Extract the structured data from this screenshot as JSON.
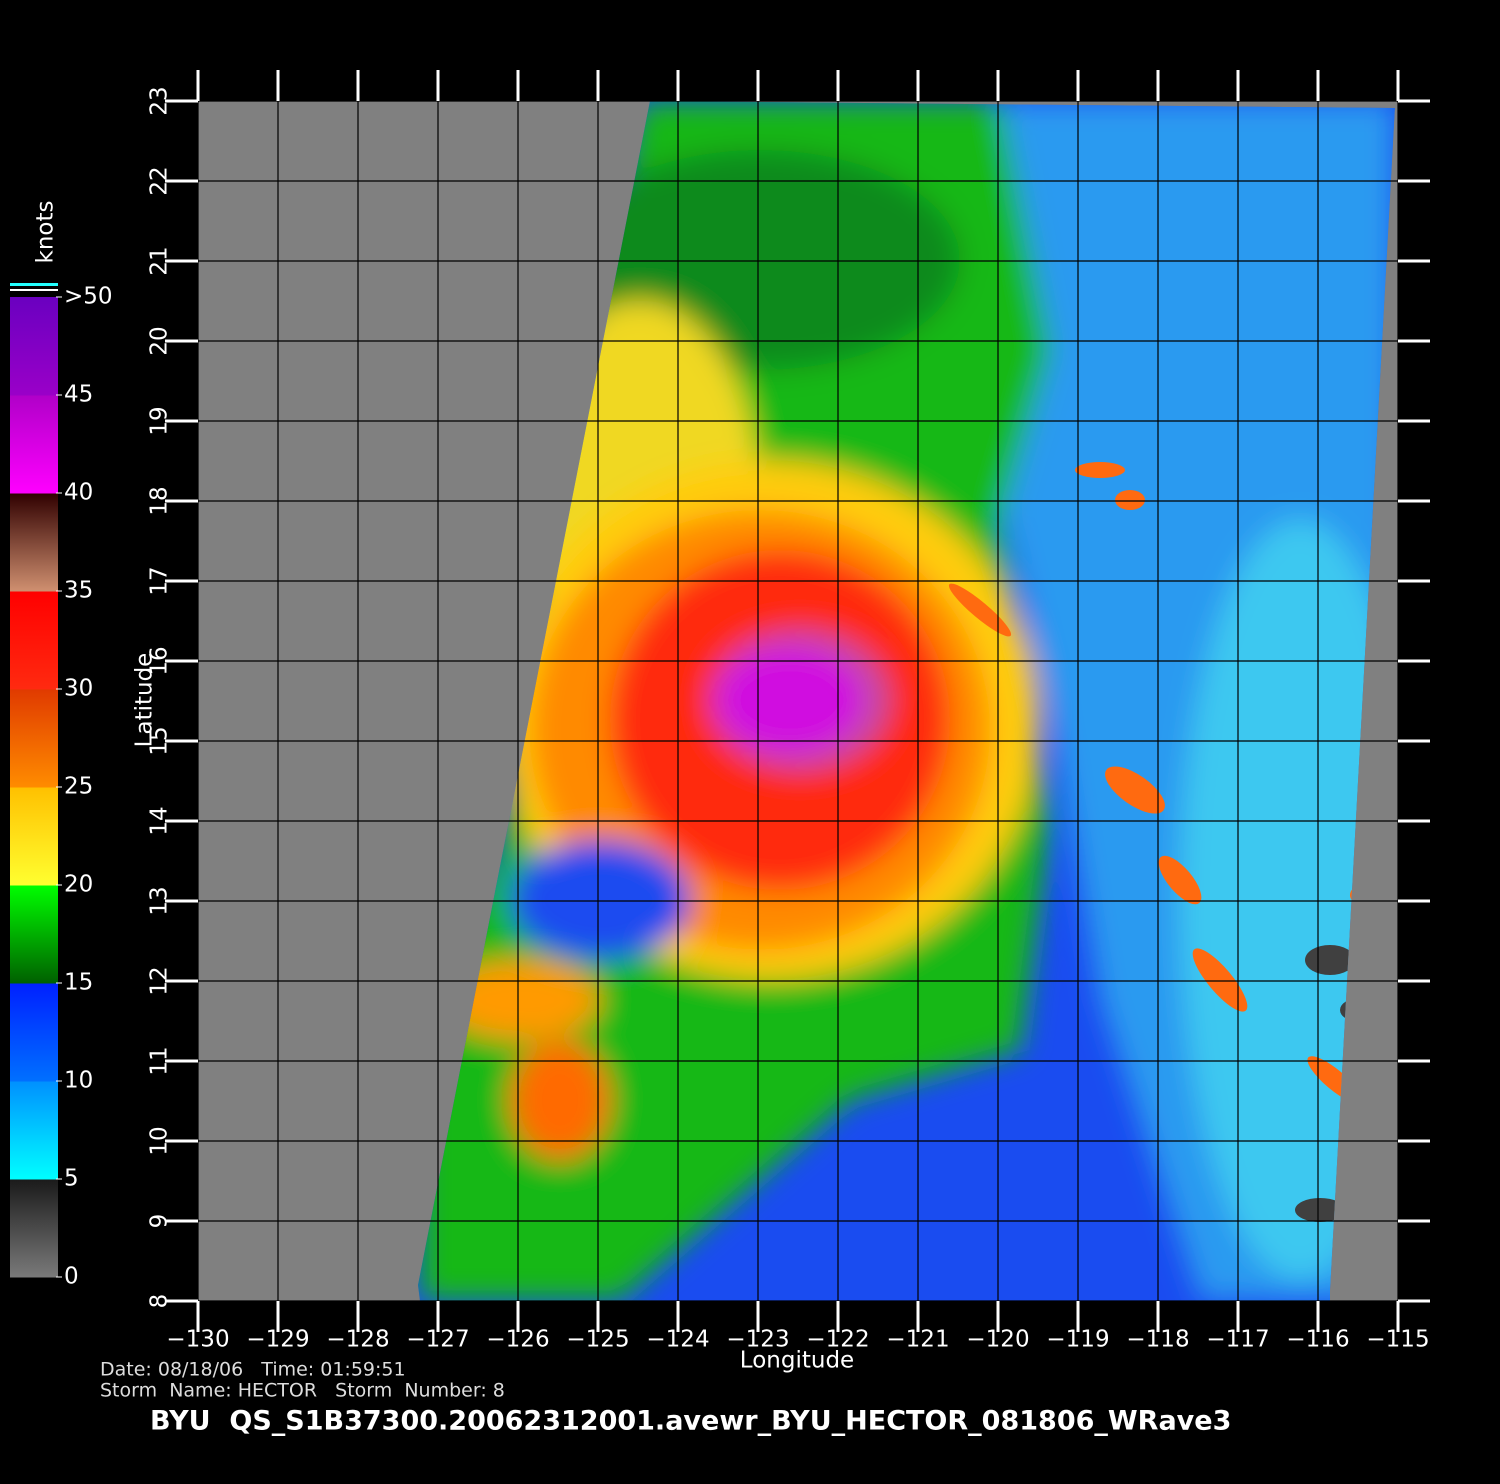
{
  "chart_data": {
    "type": "map",
    "title": "BYU  QS_S1B37300.20062312001.avewr_BYU_HECTOR_081806_WRave3",
    "xlabel": "Longitude",
    "ylabel": "Latitude",
    "annotations": [
      "Date: 08/18/06   Time: 01:59:51",
      "Storm  Name: HECTOR   Storm  Number: 8"
    ],
    "xlim": [
      -130,
      -115
    ],
    "ylim": [
      8,
      23
    ],
    "xticks": [
      {
        "value": -130,
        "label": "−130"
      },
      {
        "value": -129,
        "label": "−129"
      },
      {
        "value": -128,
        "label": "−128"
      },
      {
        "value": -127,
        "label": "−127"
      },
      {
        "value": -126,
        "label": "−126"
      },
      {
        "value": -125,
        "label": "−125"
      },
      {
        "value": -124,
        "label": "−124"
      },
      {
        "value": -123,
        "label": "−123"
      },
      {
        "value": -122,
        "label": "−122"
      },
      {
        "value": -121,
        "label": "−121"
      },
      {
        "value": -120,
        "label": "−120"
      },
      {
        "value": -119,
        "label": "−119"
      },
      {
        "value": -118,
        "label": "−118"
      },
      {
        "value": -117,
        "label": "−117"
      },
      {
        "value": -116,
        "label": "−116"
      },
      {
        "value": -115,
        "label": "−115"
      }
    ],
    "yticks": [
      8,
      9,
      10,
      11,
      12,
      13,
      14,
      15,
      16,
      17,
      18,
      19,
      20,
      21,
      22,
      23
    ],
    "grid": true,
    "colorbar": {
      "label": "knots",
      "lim": [
        0,
        50
      ],
      "ticks": [
        0,
        5,
        10,
        15,
        20,
        25,
        30,
        35,
        40,
        45,
        {
          "value": 50,
          "label": ">50"
        }
      ],
      "colors": [
        "#7a7a7a",
        "#1a1a1a",
        "#00ffff",
        "#0090ff",
        "#0070ff",
        "#0020ff",
        "#006000",
        "#00ff00",
        "#ffff30",
        "#ffc000",
        "#ff8c00",
        "#e03a00",
        "#ff2a10",
        "#ff0000",
        "#d09070",
        "#300000",
        "#ff00ff",
        "#b000c8",
        "#9a00c8",
        "#6a00c0"
      ]
    }
  }
}
